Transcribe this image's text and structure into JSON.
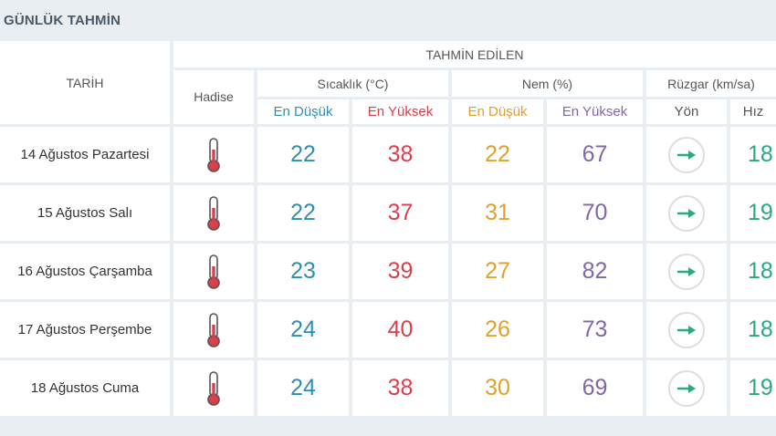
{
  "section_title": "GÜNLÜK TAHMİN",
  "headers": {
    "date": "TARİH",
    "forecast": "TAHMİN EDİLEN",
    "event": "Hadise",
    "temperature": "Sıcaklık (°C)",
    "humidity": "Nem (%)",
    "wind": "Rüzgar (km/sa)",
    "temp_low": "En Düşük",
    "temp_high": "En Yüksek",
    "hum_low": "En Düşük",
    "hum_high": "En Yüksek",
    "wind_dir": "Yön",
    "wind_speed": "Hız"
  },
  "colors": {
    "temp_low": "#2f8fae",
    "temp_high": "#d9404c",
    "hum_low": "#e0a030",
    "hum_high": "#8067a6",
    "wind_speed": "#2aa882",
    "thermometer": "#d9404c",
    "wind_arrow": "#2aa882"
  },
  "event_icon": "thermometer-icon",
  "wind_icon": "arrow-right-icon",
  "rows": [
    {
      "date": "14 Ağustos Pazartesi",
      "temp_low": "22",
      "temp_high": "38",
      "hum_low": "22",
      "hum_high": "67",
      "wind_speed": "18"
    },
    {
      "date": "15 Ağustos Salı",
      "temp_low": "22",
      "temp_high": "37",
      "hum_low": "31",
      "hum_high": "70",
      "wind_speed": "19"
    },
    {
      "date": "16 Ağustos Çarşamba",
      "temp_low": "23",
      "temp_high": "39",
      "hum_low": "27",
      "hum_high": "82",
      "wind_speed": "18"
    },
    {
      "date": "17 Ağustos Perşembe",
      "temp_low": "24",
      "temp_high": "40",
      "hum_low": "26",
      "hum_high": "73",
      "wind_speed": "18"
    },
    {
      "date": "18 Ağustos Cuma",
      "temp_low": "24",
      "temp_high": "38",
      "hum_low": "30",
      "hum_high": "69",
      "wind_speed": "19"
    }
  ]
}
